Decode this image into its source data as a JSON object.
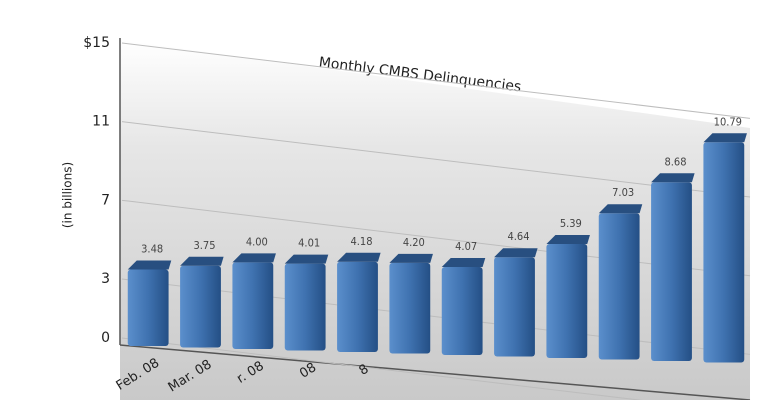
{
  "chart_data": {
    "type": "bar",
    "title": "Monthly CMBS Delinquencies",
    "y_label": "(in billions)",
    "categories": [
      "Feb. 08",
      "Mar. 08",
      "r. 08",
      "08",
      "8",
      null,
      null,
      null,
      null,
      null,
      null,
      null
    ],
    "values": [
      3.48,
      3.75,
      4.0,
      4.01,
      4.18,
      4.2,
      4.07,
      4.64,
      5.39,
      7.03,
      8.68,
      10.79
    ],
    "value_labels": [
      "3.48",
      "3.75",
      "4.00",
      "4.01",
      "4.18",
      "4.20",
      "4.07",
      "4.64",
      "5.39",
      "7.03",
      "8.68",
      "10.79"
    ],
    "color": "#3f72b0",
    "ylim": [
      0,
      15
    ],
    "yticks": [
      0,
      3,
      7,
      11,
      {
        "value": 15,
        "label": "$15"
      }
    ],
    "grid": true
  }
}
